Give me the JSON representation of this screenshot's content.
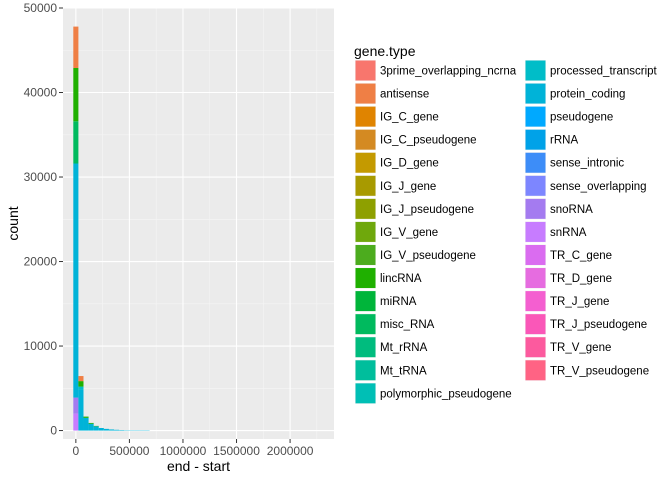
{
  "chart_data": {
    "type": "bar",
    "subtype": "stacked-histogram",
    "xlabel": "end - start",
    "ylabel": "count",
    "xlim": [
      -120000,
      2410000
    ],
    "ylim": [
      -1000,
      50000
    ],
    "x_ticks": [
      0,
      500000,
      1000000,
      1500000,
      2000000
    ],
    "x_tick_labels": [
      "0",
      "500000",
      "1000000",
      "1500000",
      "2000000"
    ],
    "y_ticks": [
      0,
      10000,
      20000,
      30000,
      40000,
      50000
    ],
    "y_tick_labels": [
      "0",
      "10000",
      "20000",
      "30000",
      "40000",
      "50000"
    ],
    "grid": true,
    "legend": {
      "title": "gene.type",
      "placement": "right",
      "columns": 2,
      "entries": [
        {
          "label": "3prime_overlapping_ncrna",
          "color": "#F8766D"
        },
        {
          "label": "antisense",
          "color": "#EF7F45"
        },
        {
          "label": "IG_C_gene",
          "color": "#E08400"
        },
        {
          "label": "IG_C_pseudogene",
          "color": "#D48A22"
        },
        {
          "label": "IG_D_gene",
          "color": "#C49A00"
        },
        {
          "label": "IG_J_gene",
          "color": "#A89A00"
        },
        {
          "label": "IG_J_pseudogene",
          "color": "#8EA000"
        },
        {
          "label": "IG_V_gene",
          "color": "#6FA80C"
        },
        {
          "label": "IG_V_pseudogene",
          "color": "#4CAC1E"
        },
        {
          "label": "lincRNA",
          "color": "#1FB000"
        },
        {
          "label": "miRNA",
          "color": "#00B53A"
        },
        {
          "label": "misc_RNA",
          "color": "#00BA5E"
        },
        {
          "label": "Mt_rRNA",
          "color": "#00BC7E"
        },
        {
          "label": "Mt_tRNA",
          "color": "#00BE9C"
        },
        {
          "label": "polymorphic_pseudogene",
          "color": "#00BFB5"
        },
        {
          "label": "processed_transcript",
          "color": "#00BDC8"
        },
        {
          "label": "protein_coding",
          "color": "#00B3D8"
        },
        {
          "label": "pseudogene",
          "color": "#00A9FF"
        },
        {
          "label": "rRNA",
          "color": "#00A2E8"
        },
        {
          "label": "sense_intronic",
          "color": "#3D8DF8"
        },
        {
          "label": "sense_overlapping",
          "color": "#7D86FF"
        },
        {
          "label": "snoRNA",
          "color": "#A47BF0"
        },
        {
          "label": "snRNA",
          "color": "#C77CFF"
        },
        {
          "label": "TR_C_gene",
          "color": "#DA6CF0"
        },
        {
          "label": "TR_D_gene",
          "color": "#E66CE0"
        },
        {
          "label": "TR_J_gene",
          "color": "#F45FD0"
        },
        {
          "label": "TR_J_pseudogene",
          "color": "#FA57B8"
        },
        {
          "label": "TR_V_gene",
          "color": "#FC5A9E"
        },
        {
          "label": "TR_V_pseudogene",
          "color": "#FF6384"
        }
      ]
    },
    "bin_width": 47500,
    "bins": [
      {
        "x_start": -23750,
        "stack": [
          {
            "type": "snRNA",
            "count": 2000
          },
          {
            "type": "snoRNA",
            "count": 1900
          },
          {
            "type": "protein_coding",
            "count": 27700
          },
          {
            "type": "misc_RNA",
            "count": 5000
          },
          {
            "type": "lincRNA",
            "count": 6300
          },
          {
            "type": "antisense",
            "count": 4900
          }
        ]
      },
      {
        "x_start": 23750,
        "stack": [
          {
            "type": "protein_coding",
            "count": 4850
          },
          {
            "type": "processed_transcript",
            "count": 350
          },
          {
            "type": "lincRNA",
            "count": 650
          },
          {
            "type": "antisense",
            "count": 600
          }
        ]
      },
      {
        "x_start": 71250,
        "stack": [
          {
            "type": "protein_coding",
            "count": 1500
          },
          {
            "type": "lincRNA",
            "count": 150
          }
        ]
      },
      {
        "x_start": 118750,
        "stack": [
          {
            "type": "protein_coding",
            "count": 800
          },
          {
            "type": "lincRNA",
            "count": 100
          }
        ]
      },
      {
        "x_start": 166250,
        "stack": [
          {
            "type": "protein_coding",
            "count": 500
          },
          {
            "type": "lincRNA",
            "count": 50
          }
        ]
      },
      {
        "x_start": 213750,
        "stack": [
          {
            "type": "protein_coding",
            "count": 300
          }
        ]
      },
      {
        "x_start": 261250,
        "stack": [
          {
            "type": "protein_coding",
            "count": 200
          }
        ]
      },
      {
        "x_start": 308750,
        "stack": [
          {
            "type": "protein_coding",
            "count": 130
          }
        ]
      },
      {
        "x_start": 356250,
        "stack": [
          {
            "type": "protein_coding",
            "count": 90
          }
        ]
      },
      {
        "x_start": 403750,
        "stack": [
          {
            "type": "protein_coding",
            "count": 60
          }
        ]
      },
      {
        "x_start": 451250,
        "stack": [
          {
            "type": "protein_coding",
            "count": 40
          }
        ]
      },
      {
        "x_start": 498750,
        "stack": [
          {
            "type": "protein_coding",
            "count": 30
          }
        ]
      },
      {
        "x_start": 546250,
        "stack": [
          {
            "type": "protein_coding",
            "count": 20
          }
        ]
      },
      {
        "x_start": 593750,
        "stack": [
          {
            "type": "protein_coding",
            "count": 15
          }
        ]
      },
      {
        "x_start": 641250,
        "stack": [
          {
            "type": "protein_coding",
            "count": 10
          }
        ]
      }
    ]
  }
}
